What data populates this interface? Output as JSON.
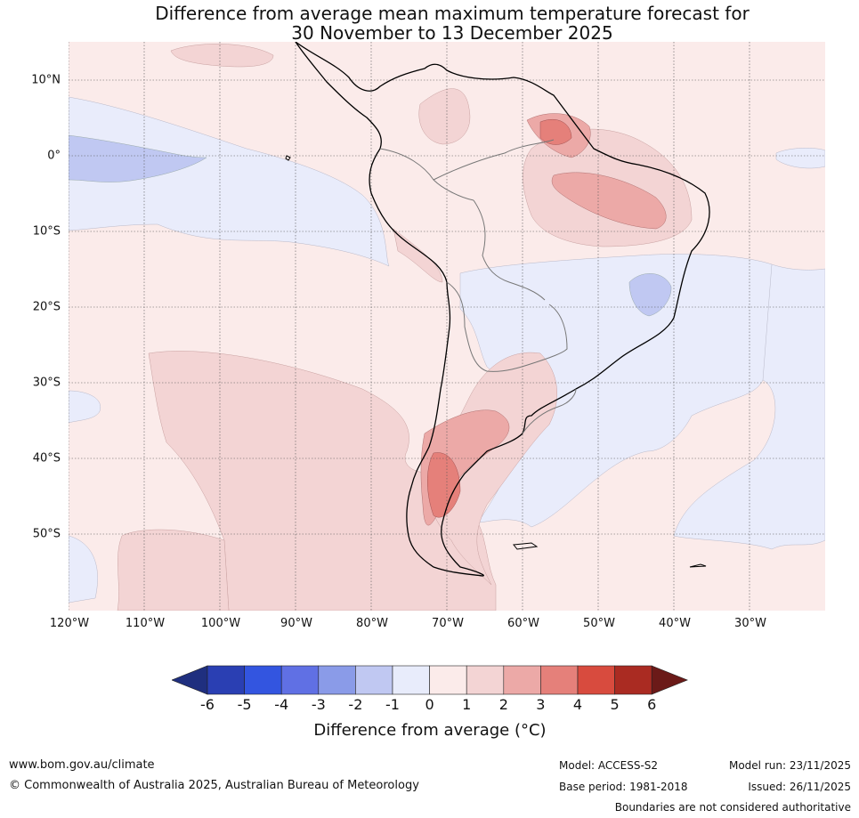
{
  "title": {
    "line1": "Difference from average mean maximum temperature forecast for",
    "line2": "30 November to 13 December 2025"
  },
  "map": {
    "latitude_labels": [
      "10°N",
      "0°",
      "10°S",
      "20°S",
      "30°S",
      "40°S",
      "50°S"
    ],
    "longitude_labels": [
      "120°W",
      "110°W",
      "100°W",
      "90°W",
      "80°W",
      "70°W",
      "60°W",
      "50°W",
      "40°W",
      "30°W"
    ],
    "lat_range": [
      -60,
      15
    ],
    "lon_range": [
      -120,
      -20
    ]
  },
  "colorbar": {
    "ticks": [
      "-6",
      "-5",
      "-4",
      "-3",
      "-2",
      "-1",
      "0",
      "1",
      "2",
      "3",
      "4",
      "5",
      "6"
    ],
    "colors": [
      "#1f2f7f",
      "#2a3fb3",
      "#3355e0",
      "#6070e4",
      "#8a9be8",
      "#c0c8f2",
      "#e8ecfb",
      "#fbebea",
      "#f3d4d4",
      "#eca9a7",
      "#e5807a",
      "#d84b3e",
      "#aa2b22",
      "#6b1a18"
    ],
    "label": "Difference from average (°C)"
  },
  "footer": {
    "website": "www.bom.gov.au/climate",
    "copyright": "© Commonwealth of Australia 2025, Australian Bureau of Meteorology",
    "model": "Model: ACCESS-S2",
    "base_period": "Base period: 1981-2018",
    "model_run": "Model run: 23/11/2025",
    "issued": "Issued: 26/11/2025",
    "disclaimer": "Boundaries are not considered authoritative"
  }
}
